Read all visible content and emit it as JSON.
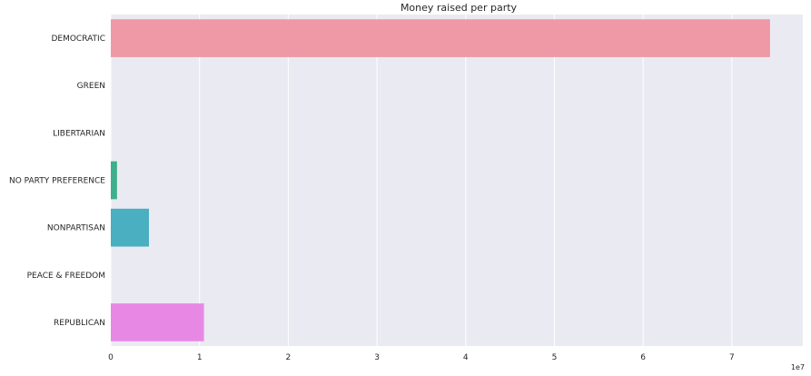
{
  "chart_data": {
    "type": "bar",
    "orientation": "horizontal",
    "title": "Money raised per party",
    "xlabel": "",
    "ylabel": "",
    "x_offset_label": "1e7",
    "xlim": [
      0,
      7.8
    ],
    "x_ticks": [
      0,
      1,
      2,
      3,
      4,
      5,
      6,
      7
    ],
    "grid": true,
    "categories": [
      "DEMOCRATIC",
      "GREEN",
      "LIBERTARIAN",
      "NO PARTY PREFERENCE",
      "NONPARTISAN",
      "PEACE & FREEDOM",
      "REPUBLICAN"
    ],
    "values": [
      7.43,
      0.0,
      0.0,
      0.07,
      0.43,
      0.0,
      1.05
    ],
    "value_unit_note": "values in units of 1e7",
    "colors": [
      "#ef99a6",
      "#b9b255",
      "#6fbf54",
      "#3daf8c",
      "#4aafc0",
      "#a49ff0",
      "#e888e5"
    ],
    "background": "#eaeaf2"
  }
}
